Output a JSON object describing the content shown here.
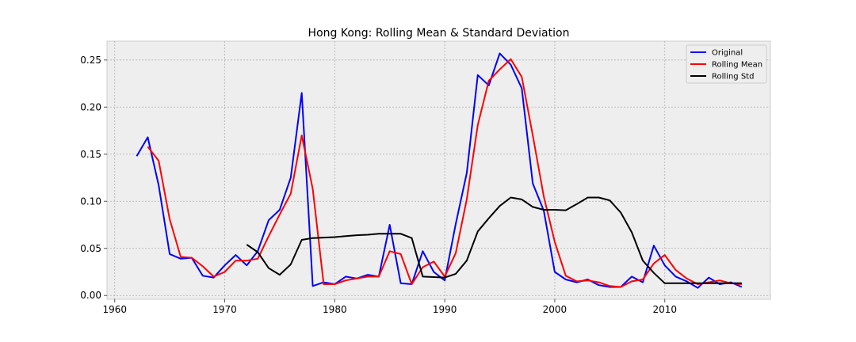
{
  "chart_data": {
    "type": "line",
    "title": "Hong Kong: Rolling Mean & Standard Deviation",
    "xlabel": "",
    "ylabel": "",
    "xlim": [
      1959.3,
      2019.6
    ],
    "ylim": [
      -0.004,
      0.27
    ],
    "xticks": [
      1960,
      1970,
      1980,
      1990,
      2000,
      2010
    ],
    "xtick_labels": [
      "1960",
      "1970",
      "1980",
      "1990",
      "2000",
      "2010"
    ],
    "yticks": [
      0.0,
      0.05,
      0.1,
      0.15,
      0.2,
      0.25
    ],
    "ytick_labels": [
      "0.00",
      "0.05",
      "0.10",
      "0.15",
      "0.20",
      "0.25"
    ],
    "grid": true,
    "legend_position": "top-right",
    "series": [
      {
        "name": "Original",
        "color": "#0000ff",
        "x": [
          1962,
          1963,
          1964,
          1965,
          1966,
          1967,
          1968,
          1969,
          1970,
          1971,
          1972,
          1973,
          1974,
          1975,
          1976,
          1977,
          1978,
          1979,
          1980,
          1981,
          1982,
          1983,
          1984,
          1985,
          1986,
          1987,
          1988,
          1989,
          1990,
          1991,
          1992,
          1993,
          1994,
          1995,
          1996,
          1997,
          1998,
          1999,
          2000,
          2001,
          2002,
          2003,
          2004,
          2005,
          2006,
          2007,
          2008,
          2009,
          2010,
          2011,
          2012,
          2013,
          2014,
          2015,
          2016,
          2017
        ],
        "y": [
          0.148,
          0.168,
          0.117,
          0.044,
          0.039,
          0.04,
          0.021,
          0.019,
          0.032,
          0.043,
          0.032,
          0.047,
          0.08,
          0.091,
          0.125,
          0.215,
          0.01,
          0.014,
          0.012,
          0.02,
          0.018,
          0.022,
          0.02,
          0.075,
          0.013,
          0.012,
          0.047,
          0.025,
          0.016,
          0.076,
          0.13,
          0.234,
          0.223,
          0.257,
          0.245,
          0.22,
          0.119,
          0.09,
          0.025,
          0.017,
          0.014,
          0.017,
          0.011,
          0.009,
          0.009,
          0.02,
          0.014,
          0.053,
          0.032,
          0.02,
          0.015,
          0.008,
          0.019,
          0.012,
          0.014,
          0.009
        ]
      },
      {
        "name": "Rolling Mean",
        "color": "#ff0000",
        "x": [
          1963,
          1964,
          1965,
          1966,
          1967,
          1968,
          1969,
          1970,
          1971,
          1972,
          1973,
          1974,
          1975,
          1976,
          1977,
          1978,
          1979,
          1980,
          1981,
          1982,
          1983,
          1984,
          1985,
          1986,
          1987,
          1988,
          1989,
          1990,
          1991,
          1992,
          1993,
          1994,
          1995,
          1996,
          1997,
          1998,
          1999,
          2000,
          2001,
          2002,
          2003,
          2004,
          2005,
          2006,
          2007,
          2008,
          2009,
          2010,
          2011,
          2012,
          2013,
          2014,
          2015,
          2016,
          2017
        ],
        "y": [
          0.158,
          0.143,
          0.081,
          0.041,
          0.04,
          0.031,
          0.02,
          0.025,
          0.037,
          0.037,
          0.039,
          0.063,
          0.086,
          0.108,
          0.17,
          0.113,
          0.012,
          0.012,
          0.016,
          0.018,
          0.02,
          0.02,
          0.047,
          0.044,
          0.012,
          0.03,
          0.036,
          0.02,
          0.045,
          0.102,
          0.181,
          0.228,
          0.24,
          0.251,
          0.232,
          0.17,
          0.105,
          0.057,
          0.021,
          0.015,
          0.016,
          0.014,
          0.01,
          0.009,
          0.015,
          0.017,
          0.034,
          0.043,
          0.027,
          0.018,
          0.012,
          0.014,
          0.016,
          0.013,
          0.012
        ]
      },
      {
        "name": "Rolling Std",
        "color": "#000000",
        "x": [
          1972,
          1973,
          1974,
          1975,
          1976,
          1977,
          1978,
          1979,
          1980,
          1981,
          1982,
          1983,
          1984,
          1985,
          1986,
          1987,
          1988,
          1989,
          1990,
          1991,
          1992,
          1993,
          1994,
          1995,
          1996,
          1997,
          1998,
          1999,
          2000,
          2001,
          2002,
          2003,
          2004,
          2005,
          2006,
          2007,
          2008,
          2009,
          2010,
          2011,
          2012,
          2013,
          2014,
          2015,
          2016,
          2017
        ],
        "y": [
          0.054,
          0.046,
          0.029,
          0.022,
          0.033,
          0.059,
          0.061,
          0.0615,
          0.062,
          0.063,
          0.064,
          0.0645,
          0.0655,
          0.0655,
          0.0655,
          0.061,
          0.02,
          0.0195,
          0.019,
          0.023,
          0.037,
          0.068,
          0.082,
          0.095,
          0.104,
          0.102,
          0.094,
          0.091,
          0.091,
          0.0905,
          0.097,
          0.104,
          0.104,
          0.101,
          0.088,
          0.067,
          0.037,
          0.024,
          0.013,
          0.013,
          0.013,
          0.013,
          0.013,
          0.013,
          0.013,
          0.013
        ]
      }
    ]
  }
}
